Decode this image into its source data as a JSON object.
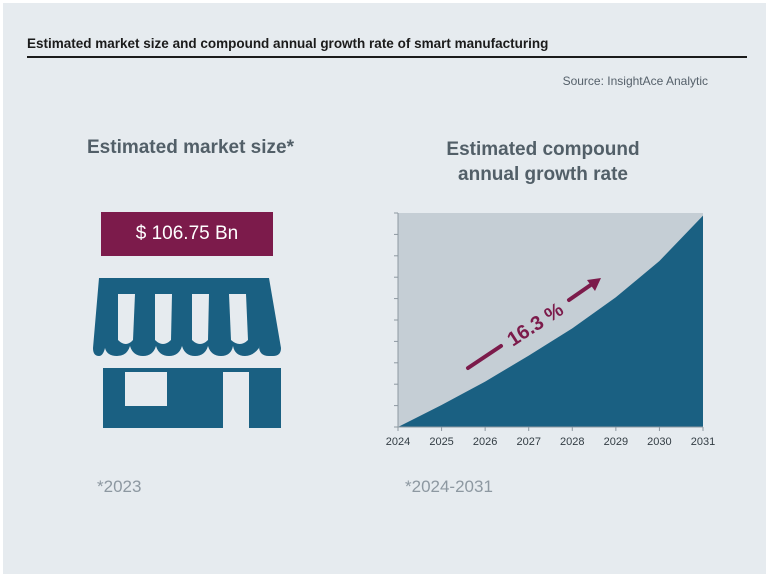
{
  "header": {
    "title": "Estimated market size and compound annual growth rate of smart manufacturing",
    "source": "Source: InsightAce Analytic"
  },
  "left_panel": {
    "heading": "Estimated market size*",
    "value_label": "$ 106.75 Bn",
    "footnote": "*2023",
    "icon": "storefront-icon"
  },
  "right_panel": {
    "heading_line1": "Estimated compound",
    "heading_line2": "annual growth rate",
    "footnote": "*2024-2031"
  },
  "colors": {
    "accent": "#7c1b4b",
    "fill_dark": "#1a6082",
    "fill_light": "#c5ced5",
    "background": "#e6ebef",
    "heading": "#525f68"
  },
  "chart_data": {
    "type": "area",
    "x": [
      2024,
      2025,
      2026,
      2027,
      2028,
      2029,
      2030,
      2031
    ],
    "values": [
      0,
      0.17,
      0.35,
      0.55,
      0.76,
      1.0,
      1.28,
      1.63
    ],
    "rate_label": "16.3 %",
    "xlim": [
      2024,
      2031
    ],
    "ylim": [
      0,
      1.65
    ],
    "y_tick_labels": "none",
    "grid": false
  }
}
